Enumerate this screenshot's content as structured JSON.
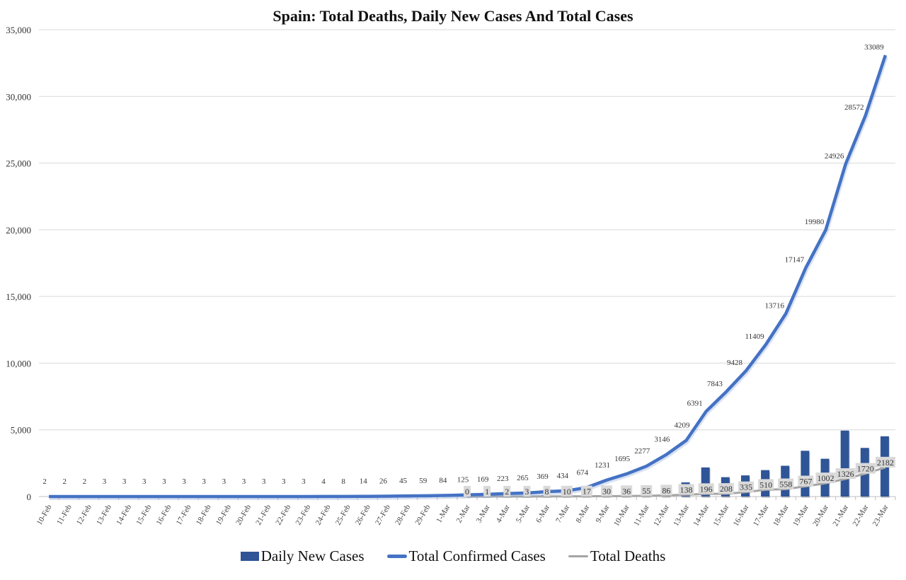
{
  "chart_data": {
    "type": "bar+line",
    "title": "Spain: Total Deaths, Daily New Cases And Total Cases",
    "xlabel": "",
    "ylabel": "",
    "ylim": [
      0,
      35000
    ],
    "yticks": [
      "0",
      "5,000",
      "10,000",
      "15,000",
      "20,000",
      "25,000",
      "30,000",
      "35,000"
    ],
    "ytick_values": [
      0,
      5000,
      10000,
      15000,
      20000,
      25000,
      30000,
      35000
    ],
    "grid": true,
    "legend_position": "bottom",
    "categories": [
      "10-Feb",
      "11-Feb",
      "12-Feb",
      "13-Feb",
      "14-Feb",
      "15-Feb",
      "16-Feb",
      "17-Feb",
      "18-Feb",
      "19-Feb",
      "20-Feb",
      "21-Feb",
      "22-Feb",
      "23-Feb",
      "24-Feb",
      "25-Feb",
      "26-Feb",
      "27-Feb",
      "28-Feb",
      "29-Feb",
      "1-Mar",
      "2-Mar",
      "3-Mar",
      "4-Mar",
      "5-Mar",
      "6-Mar",
      "7-Mar",
      "8-Mar",
      "9-Mar",
      "10-Mar",
      "11-Mar",
      "12-Mar",
      "13-Mar",
      "14-Mar",
      "15-Mar",
      "16-Mar",
      "17-Mar",
      "18-Mar",
      "19-Mar",
      "20-Mar",
      "21-Mar",
      "22-Mar",
      "23-Mar"
    ],
    "series": [
      {
        "name": "Daily New Cases",
        "type": "bar",
        "color": "#2f5597",
        "values": [
          0,
          0,
          0,
          1,
          0,
          0,
          0,
          0,
          0,
          0,
          0,
          0,
          0,
          0,
          1,
          4,
          6,
          12,
          19,
          14,
          25,
          41,
          44,
          54,
          42,
          104,
          65,
          244,
          557,
          464,
          582,
          869,
          1063,
          2182,
          1452,
          1585,
          1981,
          2307,
          3431,
          2833,
          4946,
          3646,
          4517
        ]
      },
      {
        "name": "Total Confirmed Cases",
        "type": "line",
        "color": "#4472c4",
        "labels": true,
        "values": [
          2,
          2,
          2,
          3,
          3,
          3,
          3,
          3,
          3,
          3,
          3,
          3,
          3,
          3,
          4,
          8,
          14,
          26,
          45,
          59,
          84,
          125,
          169,
          223,
          265,
          369,
          434,
          674,
          1231,
          1695,
          2277,
          3146,
          4209,
          6391,
          7843,
          9428,
          11409,
          13716,
          17147,
          19980,
          24926,
          28572,
          33089
        ],
        "label_texts": [
          "2",
          "2",
          "2",
          "3",
          "3",
          "3",
          "3",
          "3",
          "3",
          "3",
          "3",
          "3",
          "3",
          "3",
          "4",
          "8",
          "14",
          "26",
          "45",
          "59",
          "84",
          "125",
          "169",
          "223",
          "265",
          "369",
          "434",
          "674",
          "1231",
          "1695",
          "2277",
          "3146",
          "4209",
          "6391",
          "7843",
          "9428",
          "11409",
          "13716",
          "17147",
          "19980",
          "24926",
          "28572",
          "33089"
        ]
      },
      {
        "name": "Total Deaths",
        "type": "line",
        "color": "#a5a5a5",
        "labels": true,
        "values": [
          null,
          null,
          null,
          null,
          null,
          null,
          null,
          null,
          null,
          null,
          null,
          null,
          null,
          null,
          null,
          null,
          null,
          null,
          null,
          null,
          null,
          0,
          1,
          2,
          3,
          8,
          10,
          17,
          30,
          36,
          55,
          86,
          138,
          196,
          208,
          335,
          510,
          558,
          767,
          1002,
          1326,
          1720,
          2182
        ]
      }
    ]
  }
}
